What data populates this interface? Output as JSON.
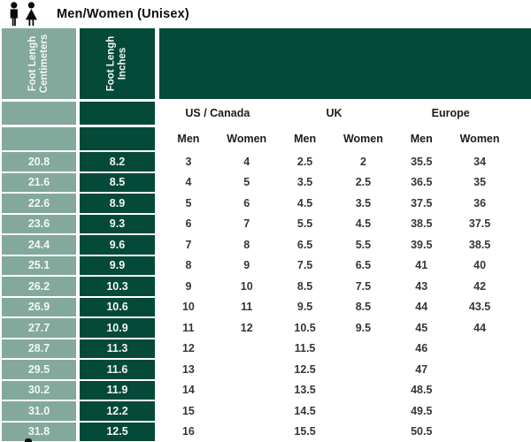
{
  "header": {
    "title": "Men/Women (Unisex)"
  },
  "left_headers": {
    "cm_line1": "Foot Lengh",
    "cm_line2": "Centimeters",
    "in_line1": "Foot Lengh",
    "in_line2": "Inches"
  },
  "regions": [
    "US / Canada",
    "UK",
    "Europe"
  ],
  "sub_headers": [
    "Men",
    "Women",
    "Men",
    "Women",
    "Men",
    "Women"
  ],
  "colors": {
    "sage": "#83a99c",
    "dark_green": "#054a39",
    "number_text": "#363636"
  },
  "chart_data": {
    "type": "table",
    "title": "Men/Women (Unisex)",
    "columns": [
      "Foot Lengh Centimeters",
      "Foot Lengh Inches",
      "US / Canada Men",
      "US / Canada Women",
      "UK Men",
      "UK Women",
      "Europe Men",
      "Europe Women"
    ],
    "rows": [
      [
        "20.8",
        "8.2",
        "3",
        "4",
        "2.5",
        "2",
        "35.5",
        "34"
      ],
      [
        "21.6",
        "8.5",
        "4",
        "5",
        "3.5",
        "2.5",
        "36.5",
        "35"
      ],
      [
        "22.6",
        "8.9",
        "5",
        "6",
        "4.5",
        "3.5",
        "37.5",
        "36"
      ],
      [
        "23.6",
        "9.3",
        "6",
        "7",
        "5.5",
        "4.5",
        "38.5",
        "37.5"
      ],
      [
        "24.4",
        "9.6",
        "7",
        "8",
        "6.5",
        "5.5",
        "39.5",
        "38.5"
      ],
      [
        "25.1",
        "9.9",
        "8",
        "9",
        "7.5",
        "6.5",
        "41",
        "40"
      ],
      [
        "26.2",
        "10.3",
        "9",
        "10",
        "8.5",
        "7.5",
        "43",
        "42"
      ],
      [
        "26.9",
        "10.6",
        "10",
        "11",
        "9.5",
        "8.5",
        "44",
        "43.5"
      ],
      [
        "27.7",
        "10.9",
        "11",
        "12",
        "10.5",
        "9.5",
        "45",
        "44"
      ],
      [
        "28.7",
        "11.3",
        "12",
        "",
        "11.5",
        "",
        "46",
        ""
      ],
      [
        "29.5",
        "11.6",
        "13",
        "",
        "12.5",
        "",
        "47",
        ""
      ],
      [
        "30.2",
        "11.9",
        "14",
        "",
        "13.5",
        "",
        "48.5",
        ""
      ],
      [
        "31.0",
        "12.2",
        "15",
        "",
        "14.5",
        "",
        "49.5",
        ""
      ],
      [
        "31.8",
        "12.5",
        "16",
        "",
        "15.5",
        "",
        "50.5",
        ""
      ]
    ]
  }
}
